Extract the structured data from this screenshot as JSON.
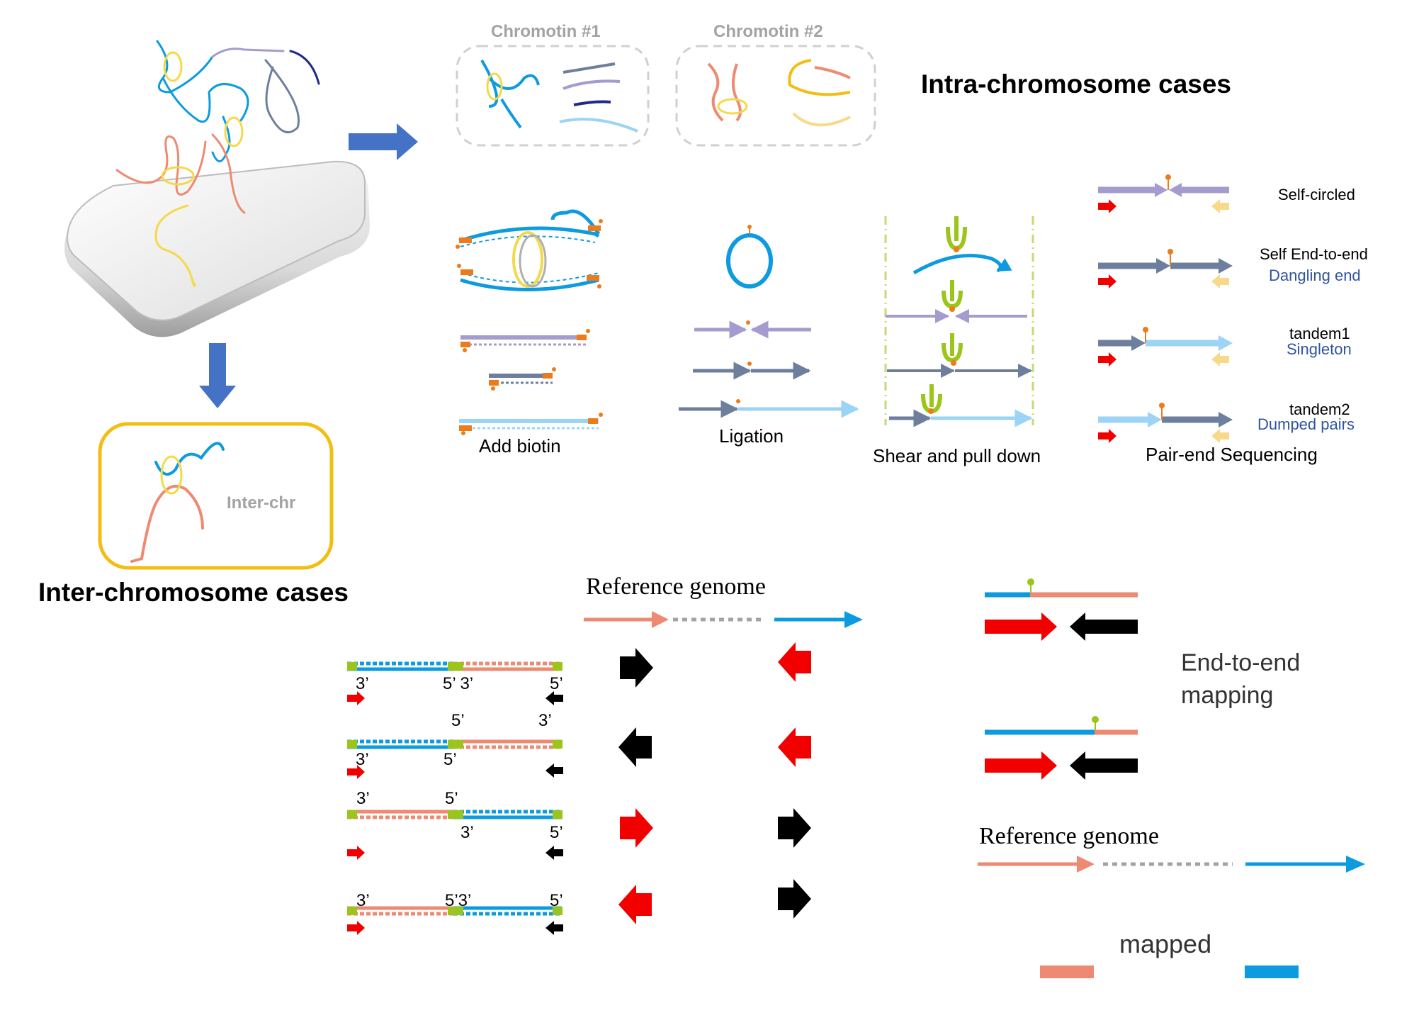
{
  "colors": {
    "blue": "#0d9be0",
    "light_blue": "#9cd4f5",
    "salmon": "#ee8a72",
    "purple": "#a59bcf",
    "slate": "#6e7f9e",
    "navy": "#1f2a8c",
    "yellow_ring": "#f4d94a",
    "gold_frame": "#f3bd12",
    "orange": "#ee7b1a",
    "green": "#9bc51a",
    "red": "#f20000",
    "black": "#000000",
    "pale_yellow": "#f8d98a",
    "gray_text": "#a3a3a3",
    "dark_blue_text": "#2f54a0"
  },
  "top": {
    "chromatin1_label": "Chromotin #1",
    "chromatin2_label": "Chromotin #2",
    "intra_title": "Intra-chromosome cases",
    "inter_title": "Inter-chromosome cases",
    "inter_box_label": "Inter-chr"
  },
  "steps": {
    "add_biotin": "Add biotin",
    "ligation": "Ligation",
    "shear": "Shear and pull down",
    "sequencing": "Pair-end  Sequencing"
  },
  "pair_types": [
    {
      "label": "Self-circled",
      "sublabel": ""
    },
    {
      "label": "Self End-to-end",
      "sublabel": "Dangling end"
    },
    {
      "label": "tandem1",
      "sublabel": "Singleton"
    },
    {
      "label": "tandem2",
      "sublabel": "Dumped pairs"
    }
  ],
  "mapping": {
    "ref_genome_1": "Reference genome",
    "ref_genome_2": "Reference genome",
    "end_to_end_line1": "End-to-end",
    "end_to_end_line2": "mapping",
    "mapped": "mapped"
  },
  "strand_rows": [
    {
      "top": [
        "3’",
        "5’ 3’",
        "5’"
      ],
      "bottom": []
    },
    {
      "top": [
        "5’",
        "3’"
      ],
      "bottom": [
        "3’",
        "5’"
      ]
    },
    {
      "top": [
        "3’",
        "5’"
      ],
      "bottom": [
        "3’",
        "5’"
      ]
    },
    {
      "top": [
        "3’",
        "5’3’",
        "5’"
      ],
      "bottom": []
    }
  ]
}
